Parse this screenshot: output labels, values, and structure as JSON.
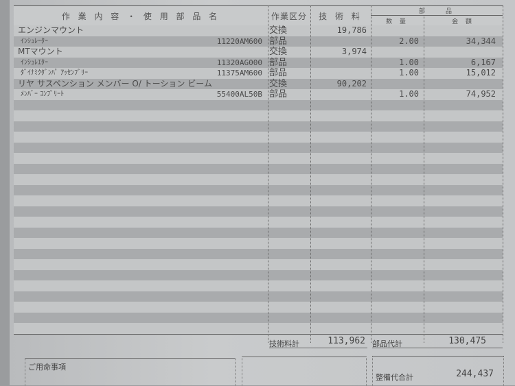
{
  "header": {
    "description": "作 業 内 容 ・ 使 用 部 品 名",
    "category": "作業区分",
    "labor": "技 術 料",
    "parts": "部　　品",
    "qty": "数 量",
    "amount": "金 額"
  },
  "items": [
    {
      "description": "エンジンマウント",
      "part_no": "",
      "category": "交換",
      "labor": "19,786",
      "qty": "",
      "amount": "",
      "sub": false
    },
    {
      "description": "ｲﾝｼｭﾚｰﾀｰ",
      "part_no": "11220AM600",
      "category": "部品",
      "labor": "",
      "qty": "2.00",
      "amount": "34,344",
      "sub": true
    },
    {
      "description": "MTマウント",
      "part_no": "",
      "category": "交換",
      "labor": "3,974",
      "qty": "",
      "amount": "",
      "sub": false
    },
    {
      "description": "ｲﾝｼｭﾚｴﾀｰ",
      "part_no": "11320AG000",
      "category": "部品",
      "labor": "",
      "qty": "1.00",
      "amount": "6,167",
      "sub": true
    },
    {
      "description": "ﾀﾞｲﾅﾐｸﾀﾞﾝﾊﾟ ｱｯｾﾝﾌﾞﾘｰ",
      "part_no": "11375AM600",
      "category": "部品",
      "labor": "",
      "qty": "1.00",
      "amount": "15,012",
      "sub": true
    },
    {
      "description": "リヤ サスペンション メンバー O/ トーション ビーム",
      "part_no": "",
      "category": "交換",
      "labor": "90,202",
      "qty": "",
      "amount": "",
      "sub": false
    },
    {
      "description": "ﾒﾝﾊﾞｰ ｺﾝﾌﾟﾘｰﾄ",
      "part_no": "55400AL50B",
      "category": "部品",
      "labor": "",
      "qty": "1.00",
      "amount": "74,952",
      "sub": true
    }
  ],
  "totals": {
    "labor_label": "技術料計",
    "labor_total": "113,962",
    "parts_label": "部品代計",
    "parts_total": "130,475",
    "grand_label": "整備代合計",
    "grand_total": "244,437"
  },
  "notes": {
    "label": "ご用命事項"
  }
}
